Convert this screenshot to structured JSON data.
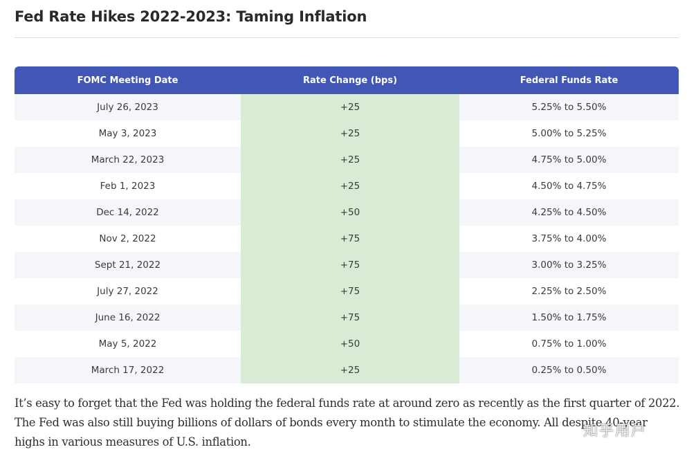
{
  "page": {
    "title": "Fed Rate Hikes 2022-2023: Taming Inflation"
  },
  "table": {
    "headers": [
      "FOMC Meeting Date",
      "Rate Change (bps)",
      "Federal Funds Rate"
    ],
    "rows": [
      {
        "date": "July 26, 2023",
        "change": "+25",
        "rate": "5.25% to 5.50%"
      },
      {
        "date": "May 3, 2023",
        "change": "+25",
        "rate": "5.00% to 5.25%"
      },
      {
        "date": "March 22, 2023",
        "change": "+25",
        "rate": "4.75% to 5.00%"
      },
      {
        "date": "Feb 1, 2023",
        "change": "+25",
        "rate": "4.50% to 4.75%"
      },
      {
        "date": "Dec 14, 2022",
        "change": "+50",
        "rate": "4.25% to 4.50%"
      },
      {
        "date": "Nov 2, 2022",
        "change": "+75",
        "rate": "3.75% to 4.00%"
      },
      {
        "date": "Sept 21, 2022",
        "change": "+75",
        "rate": "3.00% to 3.25%"
      },
      {
        "date": "July 27, 2022",
        "change": "+75",
        "rate": "2.25% to 2.50%"
      },
      {
        "date": "June 16, 2022",
        "change": "+75",
        "rate": "1.50% to 1.75%"
      },
      {
        "date": "May 5, 2022",
        "change": "+50",
        "rate": "0.75% to 1.00%"
      },
      {
        "date": "March 17, 2022",
        "change": "+25",
        "rate": "0.25% to 0.50%"
      }
    ]
  },
  "body": {
    "paragraph": "It’s easy to forget that the Fed was holding the federal funds rate at around zero as recently as the first quarter of 2022. The Fed was also still buying billions of dollars of bonds every month to stimulate the economy. All despite 40-year highs in various measures of U.S. inflation."
  },
  "watermark": {
    "text": "知乎用户"
  },
  "colors": {
    "header_bg": "#4256b6",
    "change_column_bg": "#daebd5",
    "row_stripe": "#f5f6fa"
  }
}
